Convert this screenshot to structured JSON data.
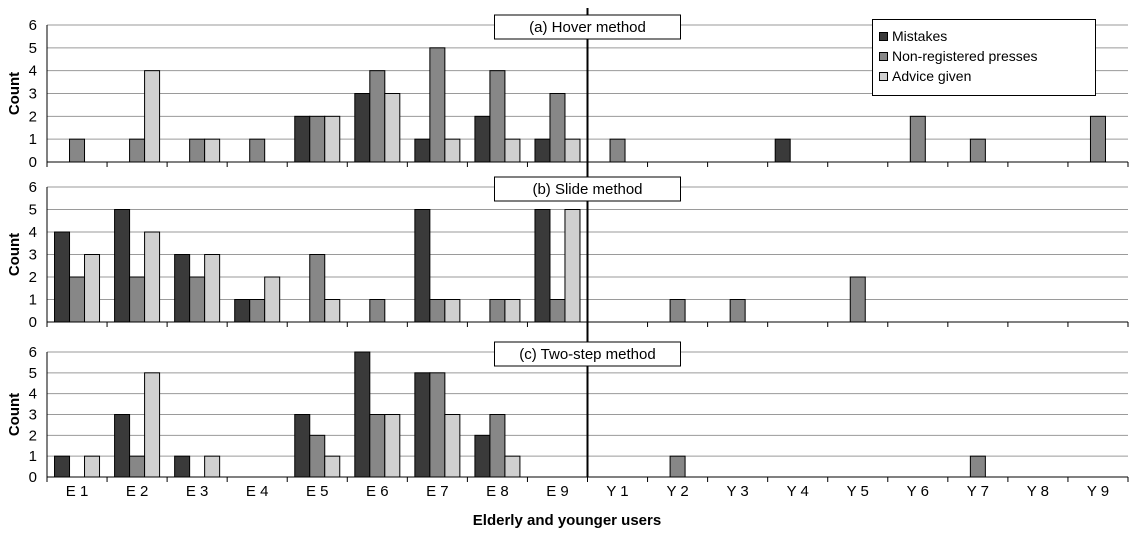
{
  "chart_data": {
    "type": "bar",
    "categories": [
      "E 1",
      "E 2",
      "E 3",
      "E 4",
      "E 5",
      "E 6",
      "E 7",
      "E 8",
      "E 9",
      "Y 1",
      "Y 2",
      "Y 3",
      "Y 4",
      "Y 5",
      "Y 6",
      "Y 7",
      "Y 8",
      "Y 9"
    ],
    "xlabel": "Elderly and younger users",
    "ylim": [
      0,
      6
    ],
    "yticks": [
      0,
      1,
      2,
      3,
      4,
      5,
      6
    ],
    "grid": true,
    "legend_position": "top-right",
    "legend": [
      {
        "name": "Mistakes",
        "color": "#3a3a3a"
      },
      {
        "name": "Non-registered presses",
        "color": "#878787"
      },
      {
        "name": "Advice given",
        "color": "#d0d0d0"
      }
    ],
    "panels": [
      {
        "title": "(a) Hover method",
        "ylabel": "Count",
        "series": [
          {
            "name": "Mistakes",
            "values": [
              0,
              0,
              0,
              0,
              2,
              3,
              1,
              2,
              1,
              0,
              0,
              0,
              1,
              0,
              0,
              0,
              0,
              0
            ]
          },
          {
            "name": "Non-registered presses",
            "values": [
              1,
              1,
              1,
              1,
              2,
              4,
              5,
              4,
              3,
              1,
              0,
              0,
              0,
              0,
              2,
              1,
              0,
              2
            ]
          },
          {
            "name": "Advice given",
            "values": [
              0,
              4,
              1,
              0,
              2,
              3,
              1,
              1,
              1,
              0,
              0,
              0,
              0,
              0,
              0,
              0,
              0,
              0
            ]
          }
        ]
      },
      {
        "title": "(b) Slide method",
        "ylabel": "Count",
        "series": [
          {
            "name": "Mistakes",
            "values": [
              4,
              5,
              3,
              1,
              0,
              0,
              5,
              0,
              5,
              0,
              0,
              0,
              0,
              0,
              0,
              0,
              0,
              0
            ]
          },
          {
            "name": "Non-registered presses",
            "values": [
              2,
              2,
              2,
              1,
              3,
              1,
              1,
              1,
              1,
              0,
              1,
              1,
              0,
              2,
              0,
              0,
              0,
              0
            ]
          },
          {
            "name": "Advice given",
            "values": [
              3,
              4,
              3,
              2,
              1,
              0,
              1,
              1,
              5,
              0,
              0,
              0,
              0,
              0,
              0,
              0,
              0,
              0
            ]
          }
        ]
      },
      {
        "title": "(c) Two-step method",
        "ylabel": "Count",
        "series": [
          {
            "name": "Mistakes",
            "values": [
              1,
              3,
              1,
              0,
              3,
              6,
              5,
              2,
              0,
              0,
              0,
              0,
              0,
              0,
              0,
              0,
              0,
              0
            ]
          },
          {
            "name": "Non-registered presses",
            "values": [
              0,
              1,
              0,
              0,
              2,
              3,
              5,
              3,
              0,
              0,
              1,
              0,
              0,
              0,
              0,
              1,
              0,
              0
            ]
          },
          {
            "name": "Advice given",
            "values": [
              1,
              5,
              1,
              0,
              1,
              3,
              3,
              1,
              0,
              0,
              0,
              0,
              0,
              0,
              0,
              0,
              0,
              0
            ]
          }
        ]
      }
    ]
  }
}
